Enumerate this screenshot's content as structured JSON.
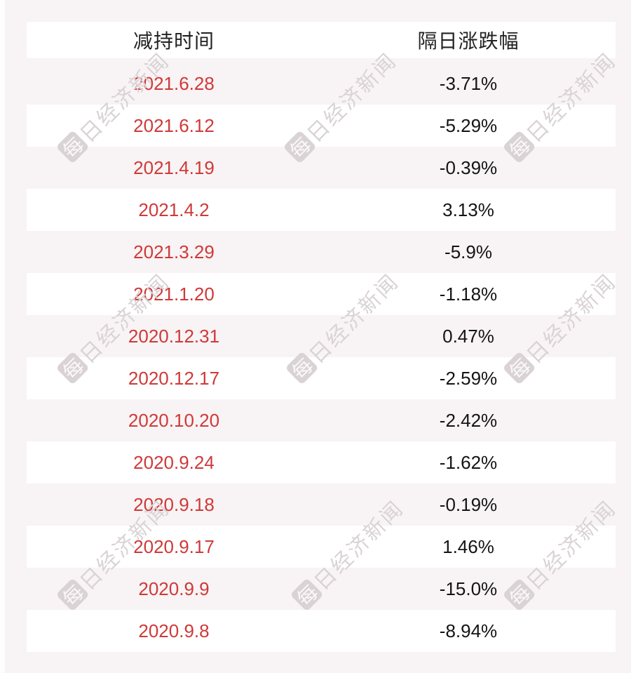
{
  "chart_data": {
    "type": "table",
    "columns": [
      "减持时间",
      "隔日涨跌幅"
    ],
    "rows": [
      {
        "date": "2021.6.28",
        "change": "-3.71%"
      },
      {
        "date": "2021.6.12",
        "change": "-5.29%"
      },
      {
        "date": "2021.4.19",
        "change": "-0.39%"
      },
      {
        "date": "2021.4.2",
        "change": "3.13%"
      },
      {
        "date": "2021.3.29",
        "change": "-5.9%"
      },
      {
        "date": "2021.1.20",
        "change": "-1.18%"
      },
      {
        "date": "2020.12.31",
        "change": "0.47%"
      },
      {
        "date": "2020.12.17",
        "change": "-2.59%"
      },
      {
        "date": "2020.10.20",
        "change": "-2.42%"
      },
      {
        "date": "2020.9.24",
        "change": "-1.62%"
      },
      {
        "date": "2020.9.18",
        "change": "-0.19%"
      },
      {
        "date": "2020.9.17",
        "change": "1.46%"
      },
      {
        "date": "2020.9.9",
        "change": "-15.0%"
      },
      {
        "date": "2020.9.8",
        "change": "-8.94%"
      }
    ]
  },
  "watermark": {
    "logo_char": "每",
    "text": "日经济新闻"
  },
  "colors": {
    "background": "#f8f3f4",
    "row_alt_white": "#ffffff",
    "date_red": "#cf3939",
    "value_text": "#141414",
    "header_text": "#222222",
    "watermark_gray": "#d9d3d5"
  }
}
